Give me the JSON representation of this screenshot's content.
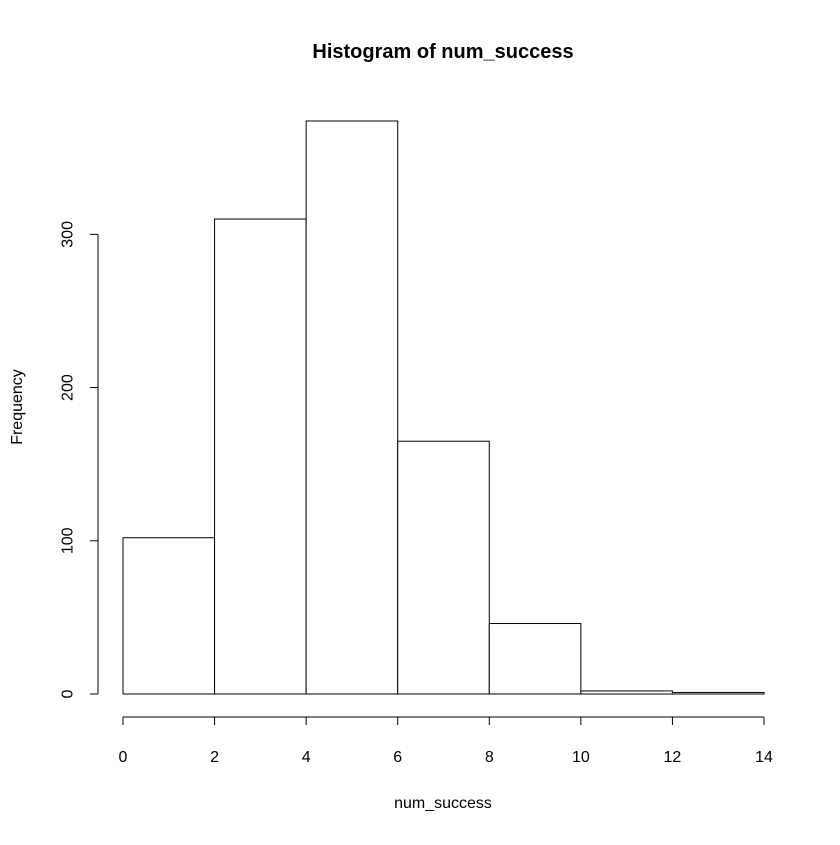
{
  "chart_data": {
    "type": "bar",
    "title": "Histogram of num_success",
    "xlabel": "num_success",
    "ylabel": "Frequency",
    "bins": [
      {
        "from": 0,
        "to": 2,
        "count": 102
      },
      {
        "from": 2,
        "to": 4,
        "count": 310
      },
      {
        "from": 4,
        "to": 6,
        "count": 374
      },
      {
        "from": 6,
        "to": 8,
        "count": 165
      },
      {
        "from": 8,
        "to": 10,
        "count": 46
      },
      {
        "from": 10,
        "to": 12,
        "count": 2
      },
      {
        "from": 12,
        "to": 14,
        "count": 1
      }
    ],
    "xlim": [
      0,
      14
    ],
    "ylim": [
      0,
      374
    ],
    "x_ticks": [
      "0",
      "2",
      "4",
      "6",
      "8",
      "10",
      "12",
      "14"
    ],
    "y_ticks": [
      "0",
      "100",
      "200",
      "300"
    ],
    "grid": false,
    "bar_fill": "#ffffff",
    "bar_stroke": "#000000"
  }
}
